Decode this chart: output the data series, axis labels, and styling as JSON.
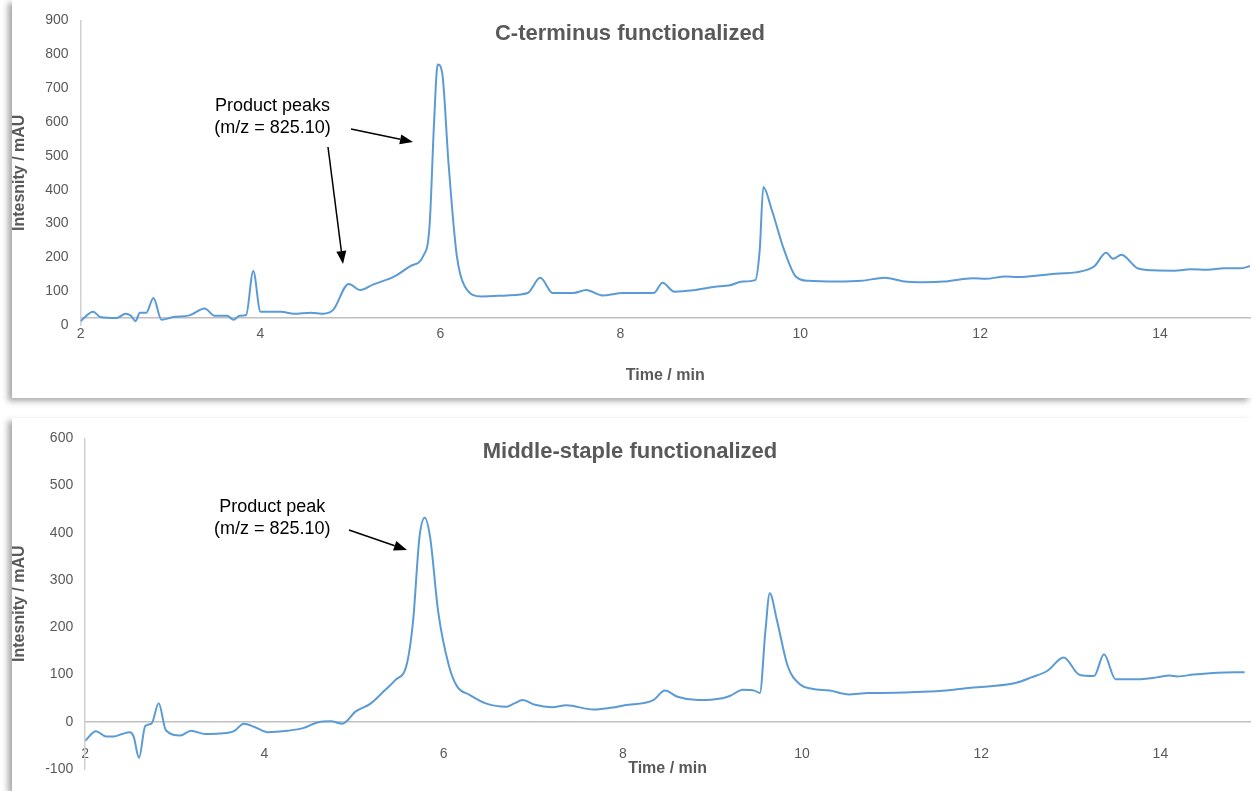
{
  "chart_data": [
    {
      "type": "line",
      "title": "C-terminus functionalized",
      "xlabel": "Time / min",
      "ylabel": "Intesnity / mAU",
      "xlim": [
        2,
        15
      ],
      "xticks": [
        2,
        4,
        6,
        8,
        10,
        12,
        14
      ],
      "ylim": [
        0,
        900
      ],
      "yticks": [
        0,
        100,
        200,
        300,
        400,
        500,
        600,
        700,
        800,
        900
      ],
      "grid": false,
      "legend": false,
      "annotations": [
        "Product peaks\n(m/z = 825.10)"
      ],
      "series": [
        {
          "color": "#5b9bd5",
          "x": [
            2.0,
            2.14,
            2.22,
            2.4,
            2.5,
            2.56,
            2.61,
            2.66,
            2.73,
            2.81,
            2.9,
            3.03,
            3.21,
            3.38,
            3.49,
            3.63,
            3.7,
            3.77,
            3.84,
            3.92,
            4.0,
            4.23,
            4.37,
            4.56,
            4.7,
            4.81,
            4.98,
            5.11,
            5.25,
            5.49,
            5.67,
            5.81,
            5.88,
            5.93,
            5.97,
            6.02,
            6.09,
            6.18,
            6.27,
            6.46,
            6.74,
            6.97,
            7.11,
            7.25,
            7.48,
            7.62,
            7.8,
            8.03,
            8.37,
            8.47,
            8.6,
            8.81,
            9.04,
            9.22,
            9.36,
            9.5,
            9.55,
            9.59,
            9.68,
            9.82,
            9.95,
            10.09,
            10.41,
            10.68,
            10.94,
            11.14,
            11.37,
            11.6,
            11.92,
            12.06,
            12.28,
            12.42,
            12.7,
            12.88,
            13.06,
            13.27,
            13.4,
            13.48,
            13.57,
            13.75,
            13.93,
            14.16,
            14.34,
            14.53,
            14.71,
            14.89,
            15.0
          ],
          "values": [
            12,
            40,
            24,
            21,
            34,
            28,
            12,
            37,
            37,
            80,
            16,
            24,
            29,
            49,
            28,
            28,
            16,
            28,
            30,
            160,
            40,
            40,
            34,
            37,
            34,
            46,
            122,
            104,
            120,
            144,
            175,
            205,
            295,
            600,
            770,
            745,
            480,
            210,
            115,
            85,
            88,
            95,
            140,
            95,
            95,
            104,
            88,
            95,
            95,
            125,
            99,
            103,
            113,
            118,
            129,
            133,
            223,
            408,
            344,
            223,
            144,
            131,
            129,
            131,
            140,
            130,
            127,
            129,
            139,
            137,
            144,
            142,
            148,
            153,
            156,
            174,
            214,
            196,
            208,
            168,
            162,
            161,
            165,
            164,
            168,
            168,
            174
          ]
        }
      ]
    },
    {
      "type": "line",
      "title": "Middle-staple functionalized",
      "xlabel": "Time / min",
      "ylabel": "Intesnity / mAU",
      "xlim": [
        2,
        15
      ],
      "xticks": [
        2,
        4,
        6,
        8,
        10,
        12,
        14
      ],
      "ylim": [
        -100,
        600
      ],
      "yticks": [
        -100,
        0,
        100,
        200,
        300,
        400,
        500,
        600
      ],
      "grid": false,
      "legend": false,
      "annotations": [
        "Product peak\n(m/z = 825.10)"
      ],
      "series": [
        {
          "color": "#5b9bd5",
          "x": [
            2.0,
            2.12,
            2.23,
            2.32,
            2.41,
            2.5,
            2.54,
            2.6,
            2.67,
            2.74,
            2.82,
            2.9,
            3.06,
            3.18,
            3.34,
            3.5,
            3.66,
            3.77,
            3.89,
            4.03,
            4.26,
            4.44,
            4.58,
            4.74,
            4.87,
            5.02,
            5.18,
            5.34,
            5.46,
            5.59,
            5.66,
            5.73,
            5.79,
            5.85,
            5.94,
            6.06,
            6.15,
            6.29,
            6.47,
            6.7,
            6.79,
            6.88,
            7.02,
            7.21,
            7.37,
            7.67,
            7.84,
            8.02,
            8.34,
            8.47,
            8.61,
            8.84,
            9.11,
            9.2,
            9.34,
            9.47,
            9.53,
            9.59,
            9.64,
            9.72,
            9.84,
            9.98,
            10.11,
            10.31,
            10.52,
            10.74,
            10.88,
            11.29,
            11.61,
            11.83,
            12.1,
            12.38,
            12.56,
            12.74,
            12.92,
            13.1,
            13.26,
            13.37,
            13.5,
            13.74,
            13.96,
            14.1,
            14.19,
            14.37,
            14.64,
            14.94
          ],
          "values": [
            -40,
            -20,
            -31,
            -31,
            -26,
            -22,
            -31,
            -76,
            -9,
            -4,
            39,
            -18,
            -29,
            -19,
            -26,
            -25,
            -20,
            -4,
            -11,
            -22,
            -19,
            -13,
            -2,
            1,
            -4,
            22,
            38,
            66,
            88,
            123,
            215,
            390,
            432,
            390,
            232,
            118,
            75,
            57,
            39,
            32,
            39,
            46,
            36,
            31,
            35,
            26,
            29,
            35,
            46,
            66,
            53,
            46,
            50,
            55,
            68,
            66,
            61,
            189,
            272,
            215,
            118,
            79,
            70,
            66,
            58,
            61,
            61,
            63,
            66,
            71,
            75,
            82,
            94,
            108,
            136,
            99,
            97,
            143,
            90,
            90,
            94,
            98,
            96,
            100,
            104,
            105
          ]
        }
      ]
    }
  ]
}
